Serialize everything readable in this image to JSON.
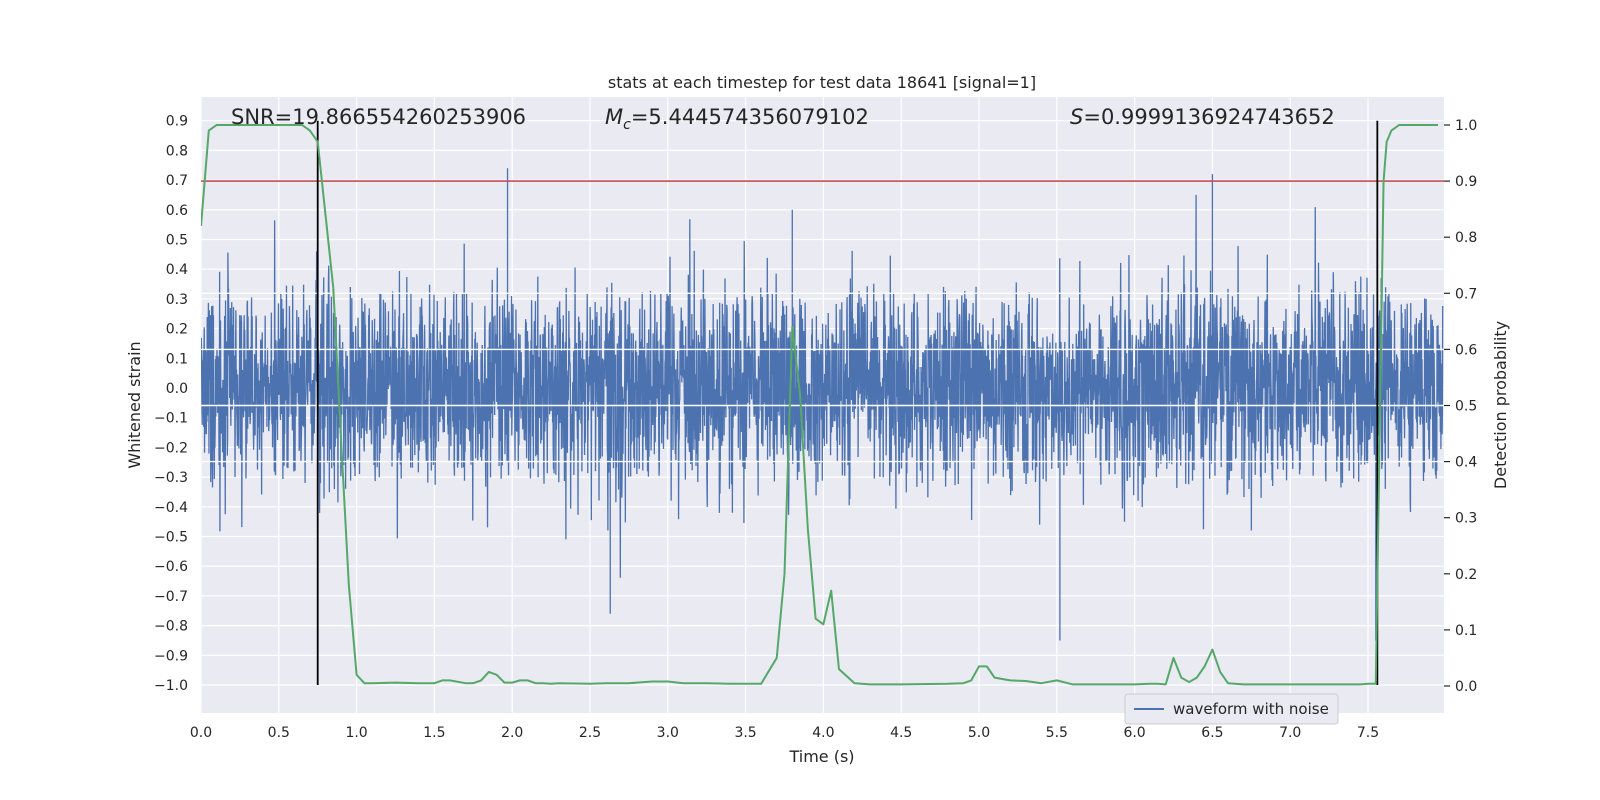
{
  "chart_data": {
    "type": "line",
    "title": "stats at each timestep for test data 18641 [signal=1]",
    "xlabel": "Time (s)",
    "ylabel_left": "Whitened strain",
    "ylabel_right": "Detection probability",
    "xlim": [
      0.0,
      8.0
    ],
    "ylim_left": [
      -1.09,
      0.96
    ],
    "ylim_right": [
      -0.05,
      1.05
    ],
    "x_ticks": [
      "0.0",
      "0.5",
      "1.0",
      "1.5",
      "2.0",
      "2.5",
      "3.0",
      "3.5",
      "4.0",
      "4.5",
      "5.0",
      "5.5",
      "6.0",
      "6.5",
      "7.0",
      "7.5"
    ],
    "y_left_ticks": [
      "0.9",
      "0.8",
      "0.7",
      "0.6",
      "0.5",
      "0.4",
      "0.3",
      "0.2",
      "0.1",
      "0.0",
      "-0.1",
      "-0.2",
      "-0.3",
      "-0.4",
      "-0.5",
      "-0.6",
      "-0.7",
      "-0.8",
      "-0.9",
      "-1.0"
    ],
    "y_right_ticks": [
      "1.0",
      "0.9",
      "0.8",
      "0.7",
      "0.6",
      "0.5",
      "0.4",
      "0.3",
      "0.2",
      "0.1",
      "0.0"
    ],
    "grid": true,
    "legend_position": "bottom-right",
    "annotations": {
      "snr_text": "SNR=19.866554260253906",
      "mc_prefix": "M",
      "mc_sub": "c",
      "mc_value": "=5.444574356079102",
      "s_prefix": "S",
      "s_value": "=0.9999136924743652"
    },
    "threshold_probability": 0.9,
    "vertical_markers_x": [
      0.75,
      7.56
    ],
    "series": [
      {
        "name": "waveform with noise",
        "kind": "noise",
        "axis": "left",
        "typical_envelope": [
          -0.33,
          0.33
        ],
        "max_value": 0.74,
        "min_value": -0.85,
        "color": "#4c72b0"
      },
      {
        "kind": "probability",
        "axis": "right",
        "color": "#55a868",
        "x": [
          0.0,
          0.05,
          0.1,
          0.15,
          0.25,
          0.5,
          0.65,
          0.7,
          0.75,
          0.8,
          0.85,
          0.9,
          0.95,
          1.0,
          1.05,
          1.1,
          1.25,
          1.4,
          1.5,
          1.55,
          1.6,
          1.7,
          1.75,
          1.8,
          1.85,
          1.9,
          1.95,
          2.0,
          2.05,
          2.1,
          2.15,
          2.2,
          2.25,
          2.3,
          2.5,
          2.6,
          2.75,
          2.9,
          3.0,
          3.1,
          3.25,
          3.4,
          3.6,
          3.7,
          3.75,
          3.8,
          3.85,
          3.9,
          3.95,
          4.0,
          4.05,
          4.1,
          4.2,
          4.3,
          4.5,
          4.8,
          4.9,
          4.95,
          5.0,
          5.05,
          5.1,
          5.2,
          5.3,
          5.4,
          5.5,
          5.6,
          5.75,
          6.0,
          6.1,
          6.15,
          6.2,
          6.25,
          6.3,
          6.35,
          6.4,
          6.45,
          6.5,
          6.55,
          6.6,
          6.7,
          7.0,
          7.3,
          7.45,
          7.5,
          7.55,
          7.6,
          7.62,
          7.65,
          7.7,
          7.8,
          7.95
        ],
        "values": [
          0.82,
          0.99,
          1.0,
          1.0,
          1.0,
          1.0,
          1.0,
          0.99,
          0.97,
          0.84,
          0.71,
          0.44,
          0.18,
          0.02,
          0.005,
          0.005,
          0.006,
          0.005,
          0.005,
          0.01,
          0.01,
          0.005,
          0.005,
          0.01,
          0.025,
          0.02,
          0.006,
          0.006,
          0.01,
          0.01,
          0.005,
          0.005,
          0.004,
          0.005,
          0.004,
          0.005,
          0.005,
          0.008,
          0.008,
          0.005,
          0.005,
          0.004,
          0.004,
          0.05,
          0.2,
          0.64,
          0.52,
          0.28,
          0.12,
          0.11,
          0.17,
          0.03,
          0.005,
          0.003,
          0.003,
          0.004,
          0.005,
          0.01,
          0.035,
          0.035,
          0.015,
          0.01,
          0.009,
          0.005,
          0.01,
          0.003,
          0.003,
          0.003,
          0.004,
          0.004,
          0.003,
          0.05,
          0.015,
          0.007,
          0.015,
          0.035,
          0.065,
          0.025,
          0.005,
          0.003,
          0.003,
          0.003,
          0.003,
          0.004,
          0.004,
          0.9,
          0.97,
          0.99,
          1.0,
          1.0,
          1.0
        ]
      }
    ]
  }
}
